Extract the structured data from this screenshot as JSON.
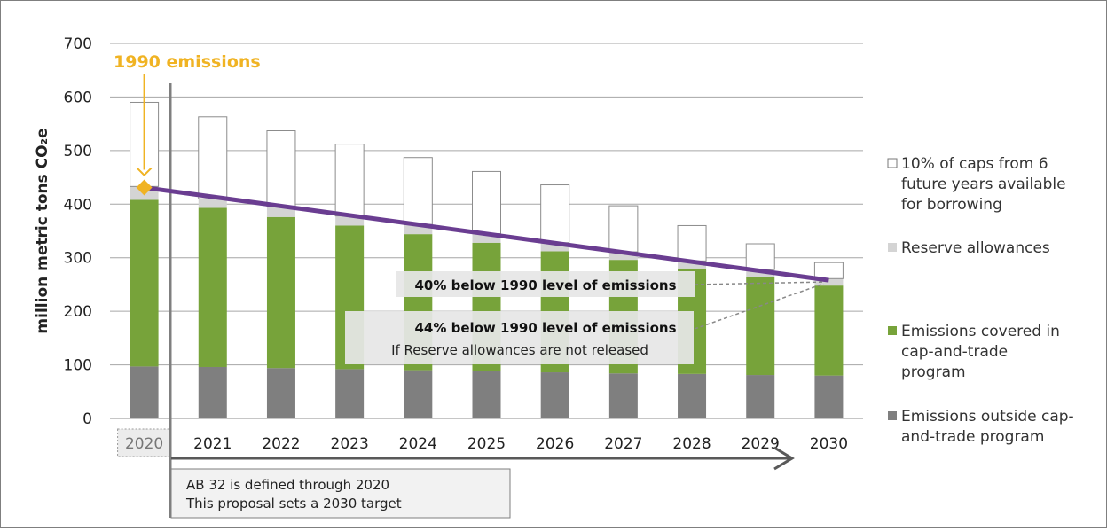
{
  "chart_data": {
    "type": "bar",
    "stacked": true,
    "categories": [
      "2020",
      "2021",
      "2022",
      "2023",
      "2024",
      "2025",
      "2026",
      "2027",
      "2028",
      "2029",
      "2030"
    ],
    "series": [
      {
        "name": "Emissions outside cap-and-trade program",
        "color": "#7f7f7f",
        "values": [
          97,
          96,
          94,
          92,
          90,
          88,
          86,
          84,
          83,
          81,
          80
        ]
      },
      {
        "name": "Emissions covered in cap-and-trade program",
        "color": "#77a33a",
        "values": [
          311,
          297,
          282,
          268,
          254,
          240,
          226,
          212,
          197,
          183,
          168
        ]
      },
      {
        "name": "Reserve allowances",
        "color": "#d4d4d4",
        "values": [
          25,
          17,
          20,
          18,
          18,
          17,
          16,
          15,
          14,
          14,
          13
        ]
      },
      {
        "name": "10% of caps from 6 future years available for borrowing",
        "color": "#ffffff",
        "values": [
          157,
          153,
          141,
          134,
          125,
          116,
          108,
          86,
          66,
          48,
          30
        ]
      }
    ],
    "ylabel": "million metric tons CO₂e",
    "ylim": [
      0,
      700
    ],
    "yticks": [
      0,
      100,
      200,
      300,
      400,
      500,
      600,
      700
    ],
    "grid": true,
    "legend_position": "right",
    "trend_line": {
      "color": "#6a3d91",
      "from": {
        "x": "2020",
        "y": 431
      },
      "to": {
        "x": "2030",
        "y": 258
      }
    },
    "marker": {
      "x": "2020",
      "y": 431,
      "label": "1990 emissions",
      "color": "#f0b323"
    },
    "annotations": [
      {
        "bold": "40% below 1990 level of emissions",
        "target": {
          "x": "2030",
          "y": 258
        }
      },
      {
        "bold": "44% below 1990 level of emissions",
        "normal": "If Reserve allowances are not released",
        "target": {
          "x": "2030",
          "y": 258
        }
      }
    ],
    "arrow_note": [
      "AB 32 is defined through 2020",
      "This proposal sets a 2030 target"
    ]
  },
  "legend_items": [
    {
      "label": [
        "10% of caps from 6",
        "future years available",
        "for borrowing"
      ]
    },
    {
      "label": [
        "Reserve allowances"
      ]
    },
    {
      "label": [
        "Emissions covered in",
        "cap-and-trade",
        "program"
      ]
    },
    {
      "label": [
        "Emissions outside cap-",
        "and-trade program"
      ]
    }
  ]
}
